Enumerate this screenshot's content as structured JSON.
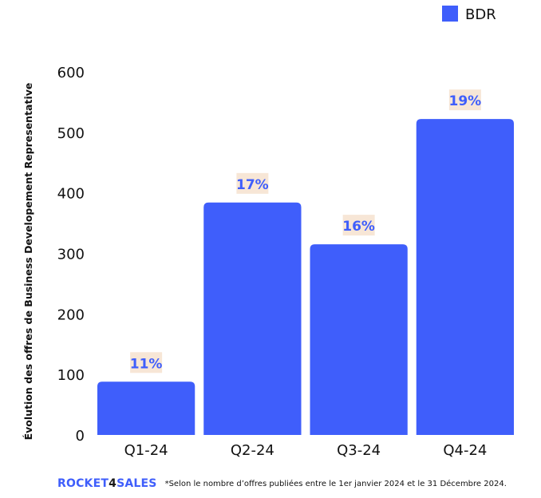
{
  "chart_data": {
    "type": "bar",
    "categories": [
      "Q1-24",
      "Q2-24",
      "Q3-24",
      "Q4-24"
    ],
    "series": [
      {
        "name": "BDR",
        "values": [
          88,
          384,
          315,
          522
        ],
        "labels": [
          "11%",
          "17%",
          "16%",
          "19%"
        ]
      }
    ],
    "title": "",
    "xlabel": "",
    "ylabel": "Évolution des offres de Business Developement Representative",
    "ylim": [
      0,
      600
    ],
    "yticks": [
      0,
      100,
      200,
      300,
      400,
      500,
      600
    ],
    "grid": false,
    "legend_position": "top-right"
  },
  "colors": {
    "bar": "#3f5efb",
    "label_bg": "#f7e6d6",
    "label_text": "#3f5efb",
    "brand_primary": "#3f5efb",
    "brand_accent": "#1a1a1a"
  },
  "footer": {
    "brand_part1": "ROCKET",
    "brand_part2": "4",
    "brand_part3": "SALES",
    "note": "*Selon le nombre d’offres publiées entre le 1er janvier 2024 et le 31 Décembre 2024."
  }
}
